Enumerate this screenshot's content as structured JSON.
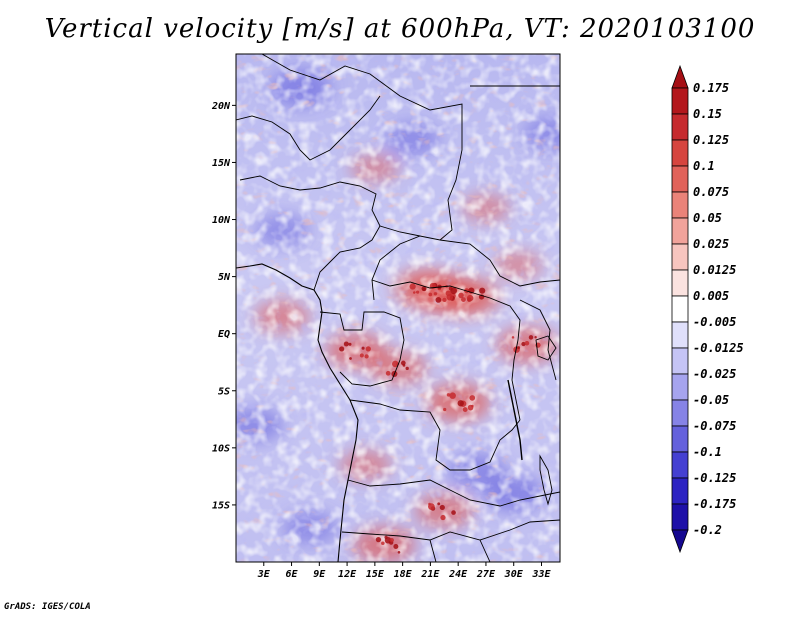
{
  "title": "Vertical velocity [m/s] at 600hPa, VT: 2020103100",
  "credit": "GrADS: IGES/COLA",
  "map": {
    "lat_range": [
      -20,
      24.5
    ],
    "lon_range": [
      0,
      35
    ],
    "lat_ticks": [
      {
        "value": 20,
        "label": "20N"
      },
      {
        "value": 15,
        "label": "15N"
      },
      {
        "value": 10,
        "label": "10N"
      },
      {
        "value": 5,
        "label": "5N"
      },
      {
        "value": 0,
        "label": "EQ"
      },
      {
        "value": -5,
        "label": "5S"
      },
      {
        "value": -10,
        "label": "10S"
      },
      {
        "value": -15,
        "label": "15S"
      }
    ],
    "lon_ticks": [
      {
        "value": 3,
        "label": "3E"
      },
      {
        "value": 6,
        "label": "6E"
      },
      {
        "value": 9,
        "label": "9E"
      },
      {
        "value": 12,
        "label": "12E"
      },
      {
        "value": 15,
        "label": "15E"
      },
      {
        "value": 18,
        "label": "18E"
      },
      {
        "value": 21,
        "label": "21E"
      },
      {
        "value": 24,
        "label": "24E"
      },
      {
        "value": 27,
        "label": "27E"
      },
      {
        "value": 30,
        "label": "30E"
      },
      {
        "value": 33,
        "label": "33E"
      }
    ],
    "ascent_areas": [
      {
        "lon": 20.5,
        "lat": 4.0,
        "strength": 0.9
      },
      {
        "lon": 22.5,
        "lat": 3.5,
        "strength": 1.0
      },
      {
        "lon": 25.0,
        "lat": 3.2,
        "strength": 0.9
      },
      {
        "lon": 13.0,
        "lat": -1.5,
        "strength": 0.8
      },
      {
        "lon": 17.5,
        "lat": -3.0,
        "strength": 0.7
      },
      {
        "lon": 24.0,
        "lat": -6.0,
        "strength": 0.9
      },
      {
        "lon": 5.0,
        "lat": 1.5,
        "strength": 0.6
      },
      {
        "lon": 22.5,
        "lat": -15.5,
        "strength": 0.7
      },
      {
        "lon": 16.0,
        "lat": -18.5,
        "strength": 0.8
      },
      {
        "lon": 15.0,
        "lat": 14.5,
        "strength": 0.4
      },
      {
        "lon": 27.0,
        "lat": 11.0,
        "strength": 0.4
      },
      {
        "lon": 31.5,
        "lat": -1.0,
        "strength": 0.8
      },
      {
        "lon": 30.5,
        "lat": 6.0,
        "strength": 0.4
      },
      {
        "lon": 14.0,
        "lat": -11.5,
        "strength": 0.5
      }
    ],
    "descent_areas": [
      {
        "lon": 7.0,
        "lat": 21.5,
        "strength": 0.6
      },
      {
        "lon": 2.0,
        "lat": -8.0,
        "strength": 0.5
      },
      {
        "lon": 26.0,
        "lat": -12.0,
        "strength": 0.5
      },
      {
        "lon": 30.0,
        "lat": -14.0,
        "strength": 0.6
      },
      {
        "lon": 5.0,
        "lat": 9.0,
        "strength": 0.4
      },
      {
        "lon": 34.0,
        "lat": 17.5,
        "strength": 0.4
      },
      {
        "lon": 19.0,
        "lat": 17.0,
        "strength": 0.4
      },
      {
        "lon": 8.0,
        "lat": -17.0,
        "strength": 0.4
      }
    ]
  },
  "colorbar": {
    "levels": [
      "0.175",
      "0.15",
      "0.125",
      "0.1",
      "0.075",
      "0.05",
      "0.025",
      "0.0125",
      "0.005",
      "-0.005",
      "-0.0125",
      "-0.025",
      "-0.05",
      "-0.075",
      "-0.1",
      "-0.125",
      "-0.175",
      "-0.2"
    ],
    "colors": [
      "#a50f15",
      "#b3171c",
      "#c62a2e",
      "#d6453f",
      "#e1625a",
      "#ea8379",
      "#f1a39b",
      "#f7c5bf",
      "#fbe3e0",
      "#ffffff",
      "#e0e0fb",
      "#c5c4f5",
      "#a6a4ee",
      "#8683e6",
      "#6561dc",
      "#4540d2",
      "#2d23c2",
      "#1e10a8",
      "#150890"
    ]
  }
}
